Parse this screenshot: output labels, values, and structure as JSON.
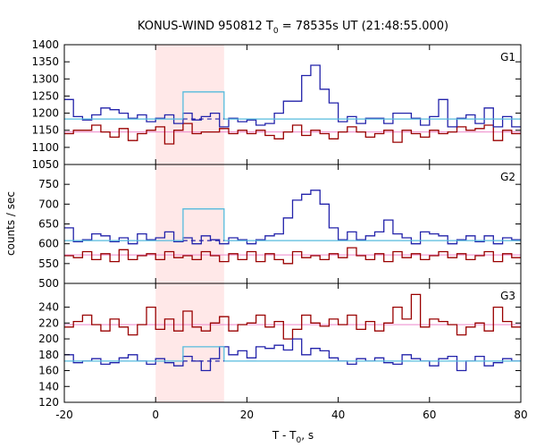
{
  "chart_data": {
    "type": "line",
    "title_main": "KONUS-WIND 950812 T",
    "title_sub": "0",
    "title_rest": " = 78535s UT (21:48:55.000)",
    "xlabel_main": "T - T",
    "xlabel_sub": "0",
    "xlabel_rest": ", s",
    "ylabel": "counts / sec",
    "xlim": [
      -20,
      80
    ],
    "xticks": [
      -20,
      0,
      20,
      40,
      60,
      80
    ],
    "x_step": 2,
    "x_start": -20,
    "highlight_interval": [
      0,
      15
    ],
    "colors": {
      "blue": "#2222aa",
      "red": "#990000",
      "cyan": "#55bbdd",
      "pink": "#ee88cc",
      "highlight": "#ffe8e8"
    },
    "panels": [
      {
        "label": "G1",
        "ylim": [
          1050,
          1400
        ],
        "yticks": [
          1050,
          1100,
          1150,
          1200,
          1250,
          1300,
          1350,
          1400
        ],
        "blue": [
          1240,
          1190,
          1180,
          1195,
          1215,
          1210,
          1200,
          1185,
          1195,
          1175,
          1185,
          1195,
          1170,
          1200,
          1180,
          1190,
          1200,
          1160,
          1185,
          1175,
          1180,
          1165,
          1170,
          1200,
          1235,
          1235,
          1310,
          1340,
          1270,
          1230,
          1175,
          1190,
          1170,
          1185,
          1185,
          1170,
          1200,
          1200,
          1185,
          1165,
          1190,
          1240,
          1160,
          1185,
          1195,
          1170,
          1215,
          1160,
          1190,
          1160
        ],
        "red": [
          1140,
          1150,
          1150,
          1165,
          1145,
          1130,
          1155,
          1120,
          1140,
          1150,
          1160,
          1110,
          1150,
          1170,
          1140,
          1145,
          1145,
          1155,
          1140,
          1150,
          1140,
          1150,
          1135,
          1125,
          1145,
          1165,
          1135,
          1150,
          1140,
          1125,
          1145,
          1160,
          1145,
          1130,
          1140,
          1150,
          1115,
          1150,
          1140,
          1130,
          1150,
          1140,
          1145,
          1160,
          1150,
          1155,
          1165,
          1120,
          1150,
          1140
        ],
        "cyan_segments": [
          {
            "x0": -20,
            "x1": 6,
            "y": 1183
          },
          {
            "x0": 6,
            "x1": 15,
            "y": 1262
          },
          {
            "x0": 15,
            "x1": 80,
            "y": 1183
          }
        ],
        "blue_bg": {
          "y": 1183,
          "x0": 6,
          "x1": 15
        },
        "pink_level": 1145
      },
      {
        "label": "G2",
        "ylim": [
          500,
          800
        ],
        "yticks": [
          500,
          550,
          600,
          650,
          700,
          750
        ],
        "blue": [
          640,
          605,
          610,
          625,
          620,
          605,
          615,
          600,
          625,
          610,
          615,
          630,
          605,
          615,
          600,
          620,
          610,
          600,
          615,
          610,
          600,
          610,
          620,
          625,
          665,
          710,
          725,
          735,
          700,
          640,
          610,
          630,
          610,
          620,
          630,
          660,
          625,
          615,
          600,
          630,
          625,
          620,
          600,
          610,
          620,
          605,
          620,
          600,
          615,
          610
        ],
        "red": [
          570,
          565,
          580,
          560,
          575,
          555,
          585,
          560,
          570,
          575,
          560,
          580,
          565,
          570,
          560,
          580,
          570,
          555,
          575,
          560,
          580,
          555,
          575,
          560,
          550,
          580,
          565,
          570,
          560,
          575,
          565,
          590,
          570,
          560,
          575,
          555,
          580,
          565,
          575,
          560,
          570,
          580,
          565,
          575,
          560,
          570,
          580,
          555,
          575,
          565
        ],
        "cyan_segments": [
          {
            "x0": -20,
            "x1": 6,
            "y": 608
          },
          {
            "x0": 6,
            "x1": 15,
            "y": 688
          },
          {
            "x0": 15,
            "x1": 80,
            "y": 608
          }
        ],
        "blue_bg": {
          "y": 608,
          "x0": 6,
          "x1": 15
        },
        "pink_level": 572
      },
      {
        "label": "G3",
        "ylim": [
          120,
          270
        ],
        "yticks": [
          120,
          140,
          160,
          180,
          200,
          220,
          240
        ],
        "blue": [
          180,
          170,
          172,
          175,
          168,
          170,
          176,
          180,
          172,
          168,
          175,
          170,
          166,
          178,
          172,
          160,
          175,
          190,
          180,
          185,
          176,
          190,
          188,
          192,
          186,
          200,
          180,
          188,
          185,
          176,
          172,
          168,
          175,
          172,
          176,
          170,
          168,
          180,
          175,
          172,
          166,
          175,
          178,
          160,
          172,
          178,
          166,
          170,
          175,
          172
        ],
        "red": [
          215,
          222,
          230,
          218,
          210,
          225,
          215,
          205,
          218,
          240,
          212,
          225,
          210,
          235,
          215,
          210,
          220,
          228,
          210,
          218,
          220,
          230,
          215,
          222,
          200,
          212,
          230,
          220,
          216,
          225,
          218,
          230,
          212,
          222,
          210,
          220,
          240,
          225,
          256,
          215,
          225,
          222,
          218,
          205,
          215,
          220,
          210,
          240,
          222,
          215
        ],
        "cyan_segments": [
          {
            "x0": -20,
            "x1": 6,
            "y": 172
          },
          {
            "x0": 6,
            "x1": 15,
            "y": 190
          },
          {
            "x0": 15,
            "x1": 80,
            "y": 172
          }
        ],
        "blue_bg": {
          "y": 172,
          "x0": 6,
          "x1": 15
        },
        "pink_level": 218
      }
    ]
  }
}
